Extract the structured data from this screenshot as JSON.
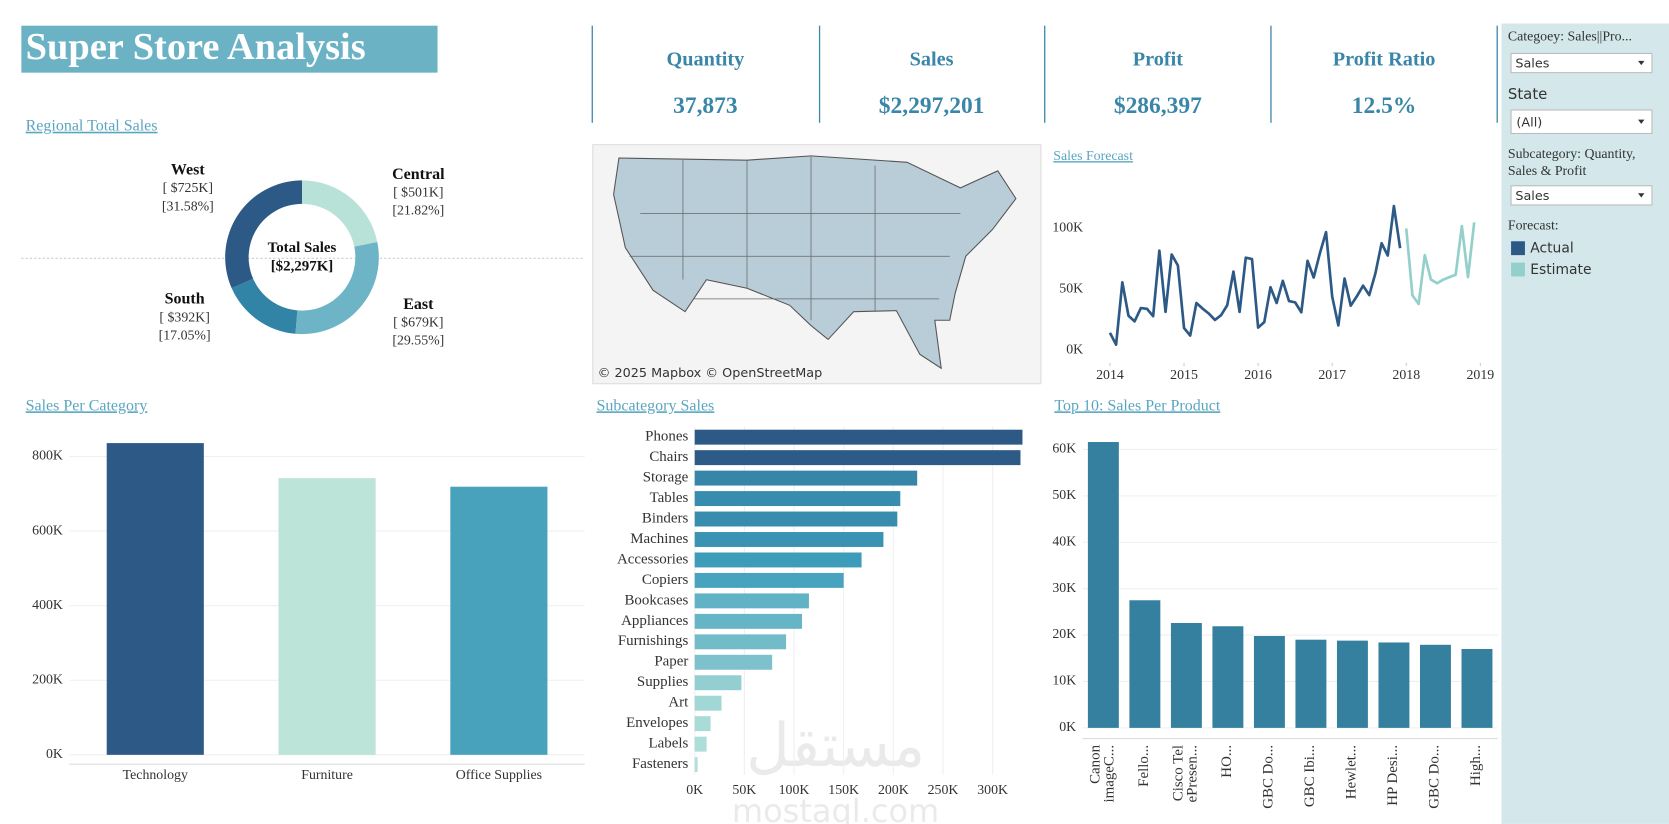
{
  "header": {
    "title": "Super Store Analysis"
  },
  "kpis": [
    {
      "label": "Quantity",
      "value": "37,873"
    },
    {
      "label": "Sales",
      "value": "$2,297,201"
    },
    {
      "label": "Profit",
      "value": "$286,397"
    },
    {
      "label": "Profit Ratio",
      "value": "12.5%"
    }
  ],
  "filters": {
    "category_label": "Categoey: Sales||Pro...",
    "category_value": "Sales",
    "state_label": "State",
    "state_value": "(All)",
    "subcategory_label": "Subcategory: Quantity, Sales & Profit",
    "subcategory_value": "Sales",
    "forecast_label": "Forecast:"
  },
  "map": {
    "attribution": "© 2025 Mapbox © OpenStreetMap"
  },
  "watermark": {
    "logo": "مستقل",
    "url": "mostaql.com"
  },
  "chart_data": [
    {
      "type": "donut",
      "title": "Regional Total Sales",
      "center_label": "Total Sales",
      "center_value": "[$2,297K]",
      "categories": [
        "Central",
        "East",
        "South",
        "West"
      ],
      "values": [
        21.82,
        29.55,
        17.05,
        31.58
      ],
      "value_labels": [
        "[21.82%]",
        "[29.55%]",
        "[17.05%]",
        "[31.58%]"
      ],
      "sales_labels": [
        "[ $501K]",
        "[ $679K]",
        "[ $392K]",
        "[ $725K]"
      ],
      "colors": [
        "#b8e2d8",
        "#6db4c6",
        "#3284a6",
        "#2d5986"
      ]
    },
    {
      "type": "line",
      "title": "Sales Forecast",
      "x": [
        2014,
        2014.083,
        2014.167,
        2014.25,
        2014.333,
        2014.417,
        2014.5,
        2014.583,
        2014.667,
        2014.75,
        2014.833,
        2014.917,
        2015,
        2015.083,
        2015.167,
        2015.25,
        2015.333,
        2015.417,
        2015.5,
        2015.583,
        2015.667,
        2015.75,
        2015.833,
        2015.917,
        2016,
        2016.083,
        2016.167,
        2016.25,
        2016.333,
        2016.417,
        2016.5,
        2016.583,
        2016.667,
        2016.75,
        2016.833,
        2016.917,
        2017,
        2017.083,
        2017.167,
        2017.25,
        2017.333,
        2017.417,
        2017.5,
        2017.583,
        2017.667,
        2017.75,
        2017.833,
        2017.917,
        2018,
        2018.083,
        2018.167,
        2018.25,
        2018.333,
        2018.417,
        2018.5,
        2018.583,
        2018.667,
        2018.75,
        2018.833,
        2018.917
      ],
      "series": [
        {
          "name": "Actual",
          "color": "#2d5986",
          "values": [
            14237,
            4520,
            55691,
            28295,
            23648,
            34595,
            33946,
            27909,
            81777,
            31453,
            78629,
            69546,
            18174,
            11951,
            38726,
            34195,
            30132,
            24797,
            28765,
            36898,
            64596,
            31405,
            75973,
            74920,
            18542,
            22979,
            51716,
            38750,
            56988,
            40345,
            39262,
            31115,
            73410,
            59688,
            79412,
            96999,
            43971,
            20301,
            58872,
            36522,
            44261,
            52982,
            45264,
            63121,
            87867,
            77777,
            118448,
            83829,
            null,
            null,
            null,
            null,
            null,
            null,
            null,
            null,
            null,
            null,
            null,
            null
          ]
        },
        {
          "name": "Estimate",
          "color": "#93cfcb",
          "values": [
            null,
            null,
            null,
            null,
            null,
            null,
            null,
            null,
            null,
            null,
            null,
            null,
            null,
            null,
            null,
            null,
            null,
            null,
            null,
            null,
            null,
            null,
            null,
            null,
            null,
            null,
            null,
            null,
            null,
            null,
            null,
            null,
            null,
            null,
            null,
            null,
            null,
            null,
            null,
            null,
            null,
            null,
            null,
            null,
            null,
            null,
            null,
            null,
            100000,
            45000,
            38000,
            78000,
            58000,
            55000,
            58000,
            60000,
            62000,
            102000,
            60000,
            105000
          ]
        }
      ],
      "xlim": [
        2013.71,
        2019.04
      ],
      "xticks": [
        2014,
        2015,
        2016,
        2017,
        2018,
        2019
      ],
      "ylim": [
        -10500,
        143000
      ],
      "yticks": [
        {
          "value": 0,
          "label": "0K"
        },
        {
          "value": 50000,
          "label": "50K"
        },
        {
          "value": 100000,
          "label": "100K"
        }
      ],
      "grid": false
    },
    {
      "type": "bar",
      "title": "Sales Per Category",
      "categories": [
        "Technology",
        "Furniture",
        "Office Supplies"
      ],
      "values": [
        836000,
        742000,
        719000
      ],
      "colors": [
        "#2d5986",
        "#bce4d9",
        "#48a2bb"
      ],
      "ylim": [
        -25000,
        865000
      ],
      "yticks": [
        {
          "value": 0,
          "label": "0K"
        },
        {
          "value": 200000,
          "label": "200K"
        },
        {
          "value": 400000,
          "label": "400K"
        },
        {
          "value": 600000,
          "label": "600K"
        },
        {
          "value": 800000,
          "label": "800K"
        }
      ],
      "grid": true
    },
    {
      "type": "bar",
      "orientation": "horizontal",
      "title": "Subcategory Sales",
      "categories": [
        "Phones",
        "Chairs",
        "Storage",
        "Tables",
        "Binders",
        "Machines",
        "Accessories",
        "Copiers",
        "Bookcases",
        "Appliances",
        "Furnishings",
        "Paper",
        "Supplies",
        "Art",
        "Envelopes",
        "Labels",
        "Fasteners"
      ],
      "values": [
        330000,
        328000,
        224000,
        207000,
        204000,
        190000,
        168000,
        150000,
        115000,
        108000,
        92000,
        78000,
        47000,
        27000,
        16000,
        12000,
        3000
      ],
      "color_range": [
        "#b5e2da",
        "#3c9dbb",
        "#2d5986"
      ],
      "xlim": [
        0,
        332000
      ],
      "xticks": [
        {
          "value": 0,
          "label": "0K"
        },
        {
          "value": 50000,
          "label": "50K"
        },
        {
          "value": 100000,
          "label": "100K"
        },
        {
          "value": 150000,
          "label": "150K"
        },
        {
          "value": 200000,
          "label": "200K"
        },
        {
          "value": 250000,
          "label": "250K"
        },
        {
          "value": 300000,
          "label": "300K"
        }
      ],
      "grid": true
    },
    {
      "type": "bar",
      "title": "Top 10: Sales Per Product",
      "categories": [
        "Canon imageC...",
        "Fello...",
        "Cisco Tel ePresen...",
        "HO...",
        "GBC Do...",
        "GBC Ibi...",
        "Hewlet...",
        "HP Desi...",
        "GBC Do...",
        "High..."
      ],
      "values": [
        61600,
        27500,
        22600,
        21900,
        19800,
        19000,
        18800,
        18400,
        17900,
        17000
      ],
      "color": "#35809f",
      "ylim": [
        -2300,
        63700
      ],
      "yticks": [
        {
          "value": 0,
          "label": "0K"
        },
        {
          "value": 10000,
          "label": "10K"
        },
        {
          "value": 20000,
          "label": "20K"
        },
        {
          "value": 30000,
          "label": "30K"
        },
        {
          "value": 40000,
          "label": "40K"
        },
        {
          "value": 50000,
          "label": "50K"
        },
        {
          "value": 60000,
          "label": "60K"
        }
      ],
      "grid": true
    }
  ]
}
